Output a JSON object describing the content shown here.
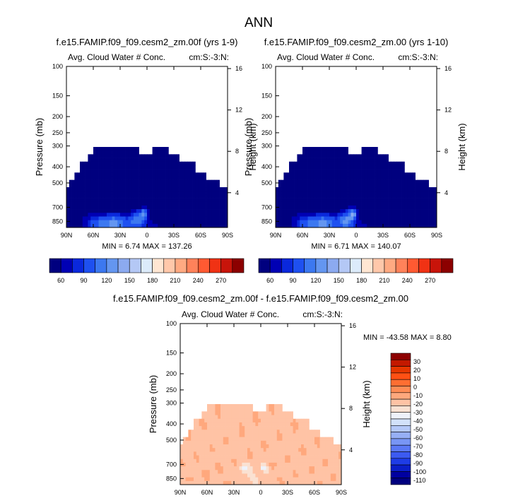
{
  "page_title": "ANN",
  "palette_blue_red": [
    "#00007f",
    "#0000b4",
    "#0a28dc",
    "#1e50f0",
    "#3c78f0",
    "#6496f0",
    "#8caaf0",
    "#b4c8f5",
    "#dcebfa",
    "#ffe6d2",
    "#ffc8aa",
    "#ffaa82",
    "#ff825a",
    "#ff5a32",
    "#f03214",
    "#c8140a",
    "#8c0000"
  ],
  "palette_diff": [
    "#00007f",
    "#0000a0",
    "#0a1ec8",
    "#1e3ce6",
    "#3c5af0",
    "#5a78f5",
    "#7896f5",
    "#96aff5",
    "#b4c8f8",
    "#d2e1fa",
    "#eef2fa",
    "#fae1d2",
    "#ffc3a5",
    "#ffa87d",
    "#ff8c55",
    "#ff6e32",
    "#ff5014",
    "#e63700",
    "#c31900",
    "#8c0000"
  ],
  "chart_data": [
    {
      "type": "heatmap",
      "id": "panel1",
      "title": "f.e15.FAMIP.f09_f09.cesm2_zm.00f (yrs 1-9)",
      "left_label": "Avg. Cloud Water # Conc.",
      "right_label": "cm:S:-3:N:",
      "ylabel": "Pressure (mb)",
      "y2label": "Height (km)",
      "x_ticks": [
        "90N",
        "60N",
        "30N",
        "0",
        "30S",
        "60S",
        "90S"
      ],
      "y_ticks": [
        "100",
        "150",
        "200",
        "250",
        "300",
        "400",
        "500",
        "700",
        "850"
      ],
      "y_tick_values": [
        100,
        150,
        200,
        250,
        300,
        400,
        500,
        700,
        850
      ],
      "y2_ticks": [
        "16",
        "12",
        "8",
        "4"
      ],
      "y2_tick_values": [
        16,
        12,
        8,
        4
      ],
      "xlim": [
        90,
        -90
      ],
      "ylim": [
        100,
        925
      ],
      "stats": "MIN =   6.74   MAX = 137.26",
      "min": 6.74,
      "max": 137.26,
      "field": "base"
    },
    {
      "type": "heatmap",
      "id": "panel2",
      "title": "f.e15.FAMIP.f09_f09.cesm2_zm.00 (yrs 1-10)",
      "left_label": "Avg. Cloud Water # Conc.",
      "right_label": "cm:S:-3:N:",
      "ylabel": "Pressure (mb)",
      "y2label": "Height (km)",
      "x_ticks": [
        "90N",
        "60N",
        "30N",
        "0",
        "30S",
        "60S",
        "90S"
      ],
      "y_ticks": [
        "100",
        "150",
        "200",
        "250",
        "300",
        "400",
        "500",
        "700",
        "850"
      ],
      "y_tick_values": [
        100,
        150,
        200,
        250,
        300,
        400,
        500,
        700,
        850
      ],
      "y2_ticks": [
        "16",
        "12",
        "8",
        "4"
      ],
      "y2_tick_values": [
        16,
        12,
        8,
        4
      ],
      "xlim": [
        90,
        -90
      ],
      "ylim": [
        100,
        925
      ],
      "stats": "MIN =   6.71   MAX = 140.07",
      "min": 6.71,
      "max": 140.07,
      "field": "base2"
    },
    {
      "type": "heatmap",
      "id": "panel3",
      "title": "f.e15.FAMIP.f09_f09.cesm2_zm.00f - f.e15.FAMIP.f09_f09.cesm2_zm.00",
      "left_label": "Avg. Cloud Water # Conc.",
      "right_label": "cm:S:-3:N:",
      "ylabel": "Pressure (mb)",
      "y2label": "Height (km)",
      "x_ticks": [
        "90N",
        "60N",
        "30N",
        "0",
        "30S",
        "60S",
        "90S"
      ],
      "y_ticks": [
        "100",
        "150",
        "200",
        "250",
        "300",
        "400",
        "500",
        "700",
        "850"
      ],
      "y_tick_values": [
        100,
        150,
        200,
        250,
        300,
        400,
        500,
        700,
        850
      ],
      "y2_ticks": [
        "16",
        "12",
        "8",
        "4"
      ],
      "y2_tick_values": [
        16,
        12,
        8,
        4
      ],
      "xlim": [
        90,
        -90
      ],
      "ylim": [
        100,
        925
      ],
      "stats": "MIN = -43.58   MAX =   8.80",
      "min": -43.58,
      "max": 8.8,
      "field": "diff"
    }
  ],
  "colorbar_main": {
    "labels": [
      "60",
      "90",
      "120",
      "150",
      "180",
      "210",
      "240",
      "270"
    ],
    "levels": [
      60,
      90,
      120,
      150,
      180,
      210,
      240,
      270
    ]
  },
  "colorbar_diff": {
    "labels": [
      "30",
      "20",
      "10",
      "0",
      "-10",
      "-20",
      "-30",
      "-40",
      "-50",
      "-60",
      "-70",
      "-80",
      "-90",
      "-100",
      "-110"
    ],
    "levels": [
      30,
      20,
      10,
      0,
      -10,
      -20,
      -30,
      -40,
      -50,
      -60,
      -70,
      -80,
      -90,
      -100,
      -110
    ]
  }
}
